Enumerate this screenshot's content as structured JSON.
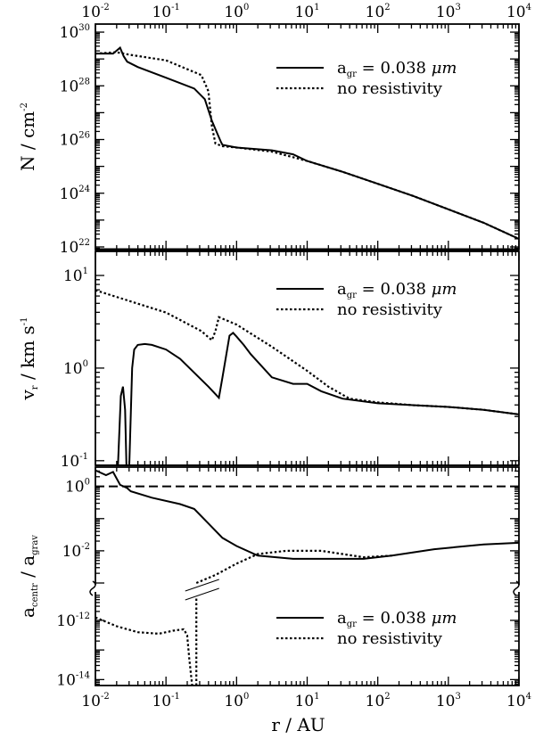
{
  "chart_data": {
    "type": "line",
    "x_axis": {
      "label_symbol": "r",
      "label_unit": "AU",
      "scale": "log",
      "xlim_log10": [
        -2,
        4
      ],
      "tick_labels": [
        {
          "base": "10",
          "exp": "-2"
        },
        {
          "base": "10",
          "exp": "-1"
        },
        {
          "base": "10",
          "exp": "0"
        },
        {
          "base": "10",
          "exp": "1"
        },
        {
          "base": "10",
          "exp": "2"
        },
        {
          "base": "10",
          "exp": "3"
        },
        {
          "base": "10",
          "exp": "4"
        }
      ]
    },
    "panels": [
      {
        "id": "column-density",
        "ylabel": {
          "main": "N",
          "unit": "cm",
          "unit_exp": "-2"
        },
        "yscale": "log",
        "ylim_log10": [
          21.9,
          30.3
        ],
        "yticks": [
          {
            "log": 22,
            "base": "10",
            "exp": "22"
          },
          {
            "log": 24,
            "base": "10",
            "exp": "24"
          },
          {
            "log": 26,
            "base": "10",
            "exp": "26"
          },
          {
            "log": 28,
            "base": "10",
            "exp": "28"
          },
          {
            "log": 30,
            "base": "10",
            "exp": "30"
          }
        ],
        "legend": [
          {
            "prefix": "a",
            "sub": "gr",
            "text": " = 0.038 ",
            "unit": "μm",
            "style": "solid"
          },
          {
            "text": "no resistivity",
            "style": "dotted"
          }
        ],
        "series": [
          {
            "name": "a_gr = 0.038 μm",
            "style": "solid",
            "x_log": [
              -2,
              -1.75,
              -1.65,
              -1.6,
              -1.55,
              -1.4,
              -1,
              -0.6,
              -0.45,
              -0.35,
              -0.27,
              -0.22,
              -0.2,
              -0.1,
              0,
              0.5,
              0.8,
              1,
              1.5,
              2,
              2.5,
              3,
              3.5,
              4
            ],
            "y_log": [
              29.2,
              29.2,
              29.42,
              29.1,
              28.9,
              28.7,
              28.3,
              27.9,
              27.5,
              26.7,
              26.2,
              25.9,
              25.8,
              25.75,
              25.7,
              25.6,
              25.45,
              25.2,
              24.8,
              24.35,
              23.9,
              23.4,
              22.9,
              22.3
            ]
          },
          {
            "name": "no resistivity",
            "style": "dotted",
            "x_log": [
              -2,
              -1.7,
              -1.5,
              -1,
              -0.5,
              -0.4,
              -0.35,
              -0.3,
              -0.25,
              -0.2,
              0,
              0.5,
              1,
              1.5,
              2,
              2.5,
              3,
              3.5,
              4
            ],
            "y_log": [
              29.2,
              29.25,
              29.15,
              28.95,
              28.4,
              27.8,
              26.5,
              25.85,
              25.8,
              25.75,
              25.7,
              25.55,
              25.2,
              24.8,
              24.35,
              23.9,
              23.4,
              22.9,
              22.3
            ]
          }
        ]
      },
      {
        "id": "radial-velocity",
        "ylabel": {
          "main": "v",
          "sub": "r",
          "unit": "km s",
          "unit_exp": "-1"
        },
        "yscale": "log",
        "ylim_log10": [
          -1.05,
          1.26
        ],
        "yticks": [
          {
            "log": -1,
            "base": "10",
            "exp": "-1"
          },
          {
            "log": 0,
            "base": "10",
            "exp": "0"
          },
          {
            "log": 1,
            "base": "10",
            "exp": "1"
          }
        ],
        "legend": [
          {
            "prefix": "a",
            "sub": "gr",
            "text": " = 0.038 ",
            "unit": "μm",
            "style": "solid"
          },
          {
            "text": "no resistivity",
            "style": "dotted"
          }
        ],
        "series": [
          {
            "name": "a_gr = 0.038 μm",
            "style": "solid",
            "segments": [
              {
                "x_log": [
                  -1.68,
                  -1.64,
                  -1.61,
                  -1.58,
                  -1.56
                ],
                "y_log": [
                  -1.05,
                  -0.3,
                  -0.2,
                  -0.45,
                  -1.05
                ]
              },
              {
                "x_log": [
                  -1.52,
                  -1.48,
                  -1.45,
                  -1.4,
                  -1.3,
                  -1.2,
                  -1,
                  -0.8,
                  -0.6,
                  -0.4,
                  -0.25,
                  -0.2,
                  -0.1,
                  -0.05,
                  0,
                  0.1,
                  0.2,
                  0.5,
                  0.8,
                  1,
                  1.2,
                  1.5,
                  2,
                  2.5,
                  3,
                  3.5,
                  4
                ],
                "y_log": [
                  -1.05,
                  0,
                  0.2,
                  0.25,
                  0.26,
                  0.25,
                  0.2,
                  0.1,
                  -0.05,
                  -0.2,
                  -0.32,
                  -0.1,
                  0.35,
                  0.38,
                  0.34,
                  0.25,
                  0.15,
                  -0.1,
                  -0.17,
                  -0.17,
                  -0.25,
                  -0.33,
                  -0.38,
                  -0.4,
                  -0.42,
                  -0.45,
                  -0.5
                ]
              }
            ]
          },
          {
            "name": "no resistivity",
            "style": "dotted",
            "segments": [
              {
                "x_log": [
                  -2,
                  -1.5,
                  -1,
                  -0.5,
                  -0.35,
                  -0.3,
                  -0.25,
                  0,
                  0.5,
                  1,
                  1.3,
                  1.6,
                  2,
                  2.5,
                  3,
                  3.5,
                  4
                ],
                "y_log": [
                  0.84,
                  0.72,
                  0.6,
                  0.4,
                  0.3,
                  0.4,
                  0.55,
                  0.47,
                  0.23,
                  -0.03,
                  -0.2,
                  -0.33,
                  -0.37,
                  -0.4,
                  -0.42,
                  -0.45,
                  -0.5
                ]
              }
            ]
          }
        ]
      },
      {
        "id": "acceleration-ratio",
        "ylabel": {
          "main": "a",
          "sub": "centr",
          "sep": " / ",
          "main2": "a",
          "sub2": "grav"
        },
        "yscale": "log-broken",
        "upper_ylim_log10": [
          -3,
          0.6
        ],
        "lower_ylim_log10": [
          -14.2,
          -11.1
        ],
        "yticks": [
          {
            "log": 0,
            "segment": "upper",
            "base": "10",
            "exp": "0"
          },
          {
            "log": -2,
            "segment": "upper",
            "base": "10",
            "exp": "-2"
          },
          {
            "log": -12,
            "segment": "lower",
            "base": "10",
            "exp": "-12"
          },
          {
            "log": -14,
            "segment": "lower",
            "base": "10",
            "exp": "-14"
          }
        ],
        "reference_line": {
          "y": 1,
          "y_log": 0,
          "style": "dashed"
        },
        "legend": [
          {
            "prefix": "a",
            "sub": "gr",
            "text": " = 0.038 ",
            "unit": "μm",
            "style": "solid"
          },
          {
            "text": "no resistivity",
            "style": "dotted"
          }
        ],
        "series": [
          {
            "name": "a_gr = 0.038 μm",
            "style": "solid",
            "x_log": [
              -2,
              -1.85,
              -1.75,
              -1.65,
              -1.55,
              -1.5,
              -1.2,
              -0.8,
              -0.6,
              -0.4,
              -0.2,
              0,
              0.3,
              0.8,
              1.3,
              1.8,
              2.2,
              2.8,
              3.5,
              4
            ],
            "y_log": [
              0.5,
              0.35,
              0.45,
              0.05,
              -0.05,
              -0.15,
              -0.35,
              -0.55,
              -0.7,
              -1.15,
              -1.6,
              -1.85,
              -2.15,
              -2.25,
              -2.25,
              -2.25,
              -2.15,
              -1.95,
              -1.8,
              -1.75
            ]
          },
          {
            "name": "no resistivity",
            "style": "dotted",
            "segments": [
              {
                "break": "lower",
                "x_log": [
                  -2,
                  -1.7,
                  -1.4,
                  -1.1,
                  -0.9,
                  -0.75,
                  -0.7,
                  -0.67,
                  -0.63
                ],
                "y_log": [
                  -11.9,
                  -12.2,
                  -12.4,
                  -12.45,
                  -12.35,
                  -12.3,
                  -12.5,
                  -13.3,
                  -14.2
                ]
              },
              {
                "break": "lower",
                "x_log": [
                  -0.57,
                  -0.57
                ],
                "y_log": [
                  -14.2,
                  -11.2
                ]
              },
              {
                "break": "upper",
                "x_log": [
                  -0.57,
                  -0.3,
                  0,
                  0.3,
                  0.7,
                  1.2,
                  1.5,
                  1.8,
                  2.2
                ],
                "y_log": [
                  -3,
                  -2.75,
                  -2.4,
                  -2.1,
                  -2,
                  -2,
                  -2.1,
                  -2.2,
                  -2.15
                ]
              }
            ]
          }
        ]
      }
    ]
  }
}
